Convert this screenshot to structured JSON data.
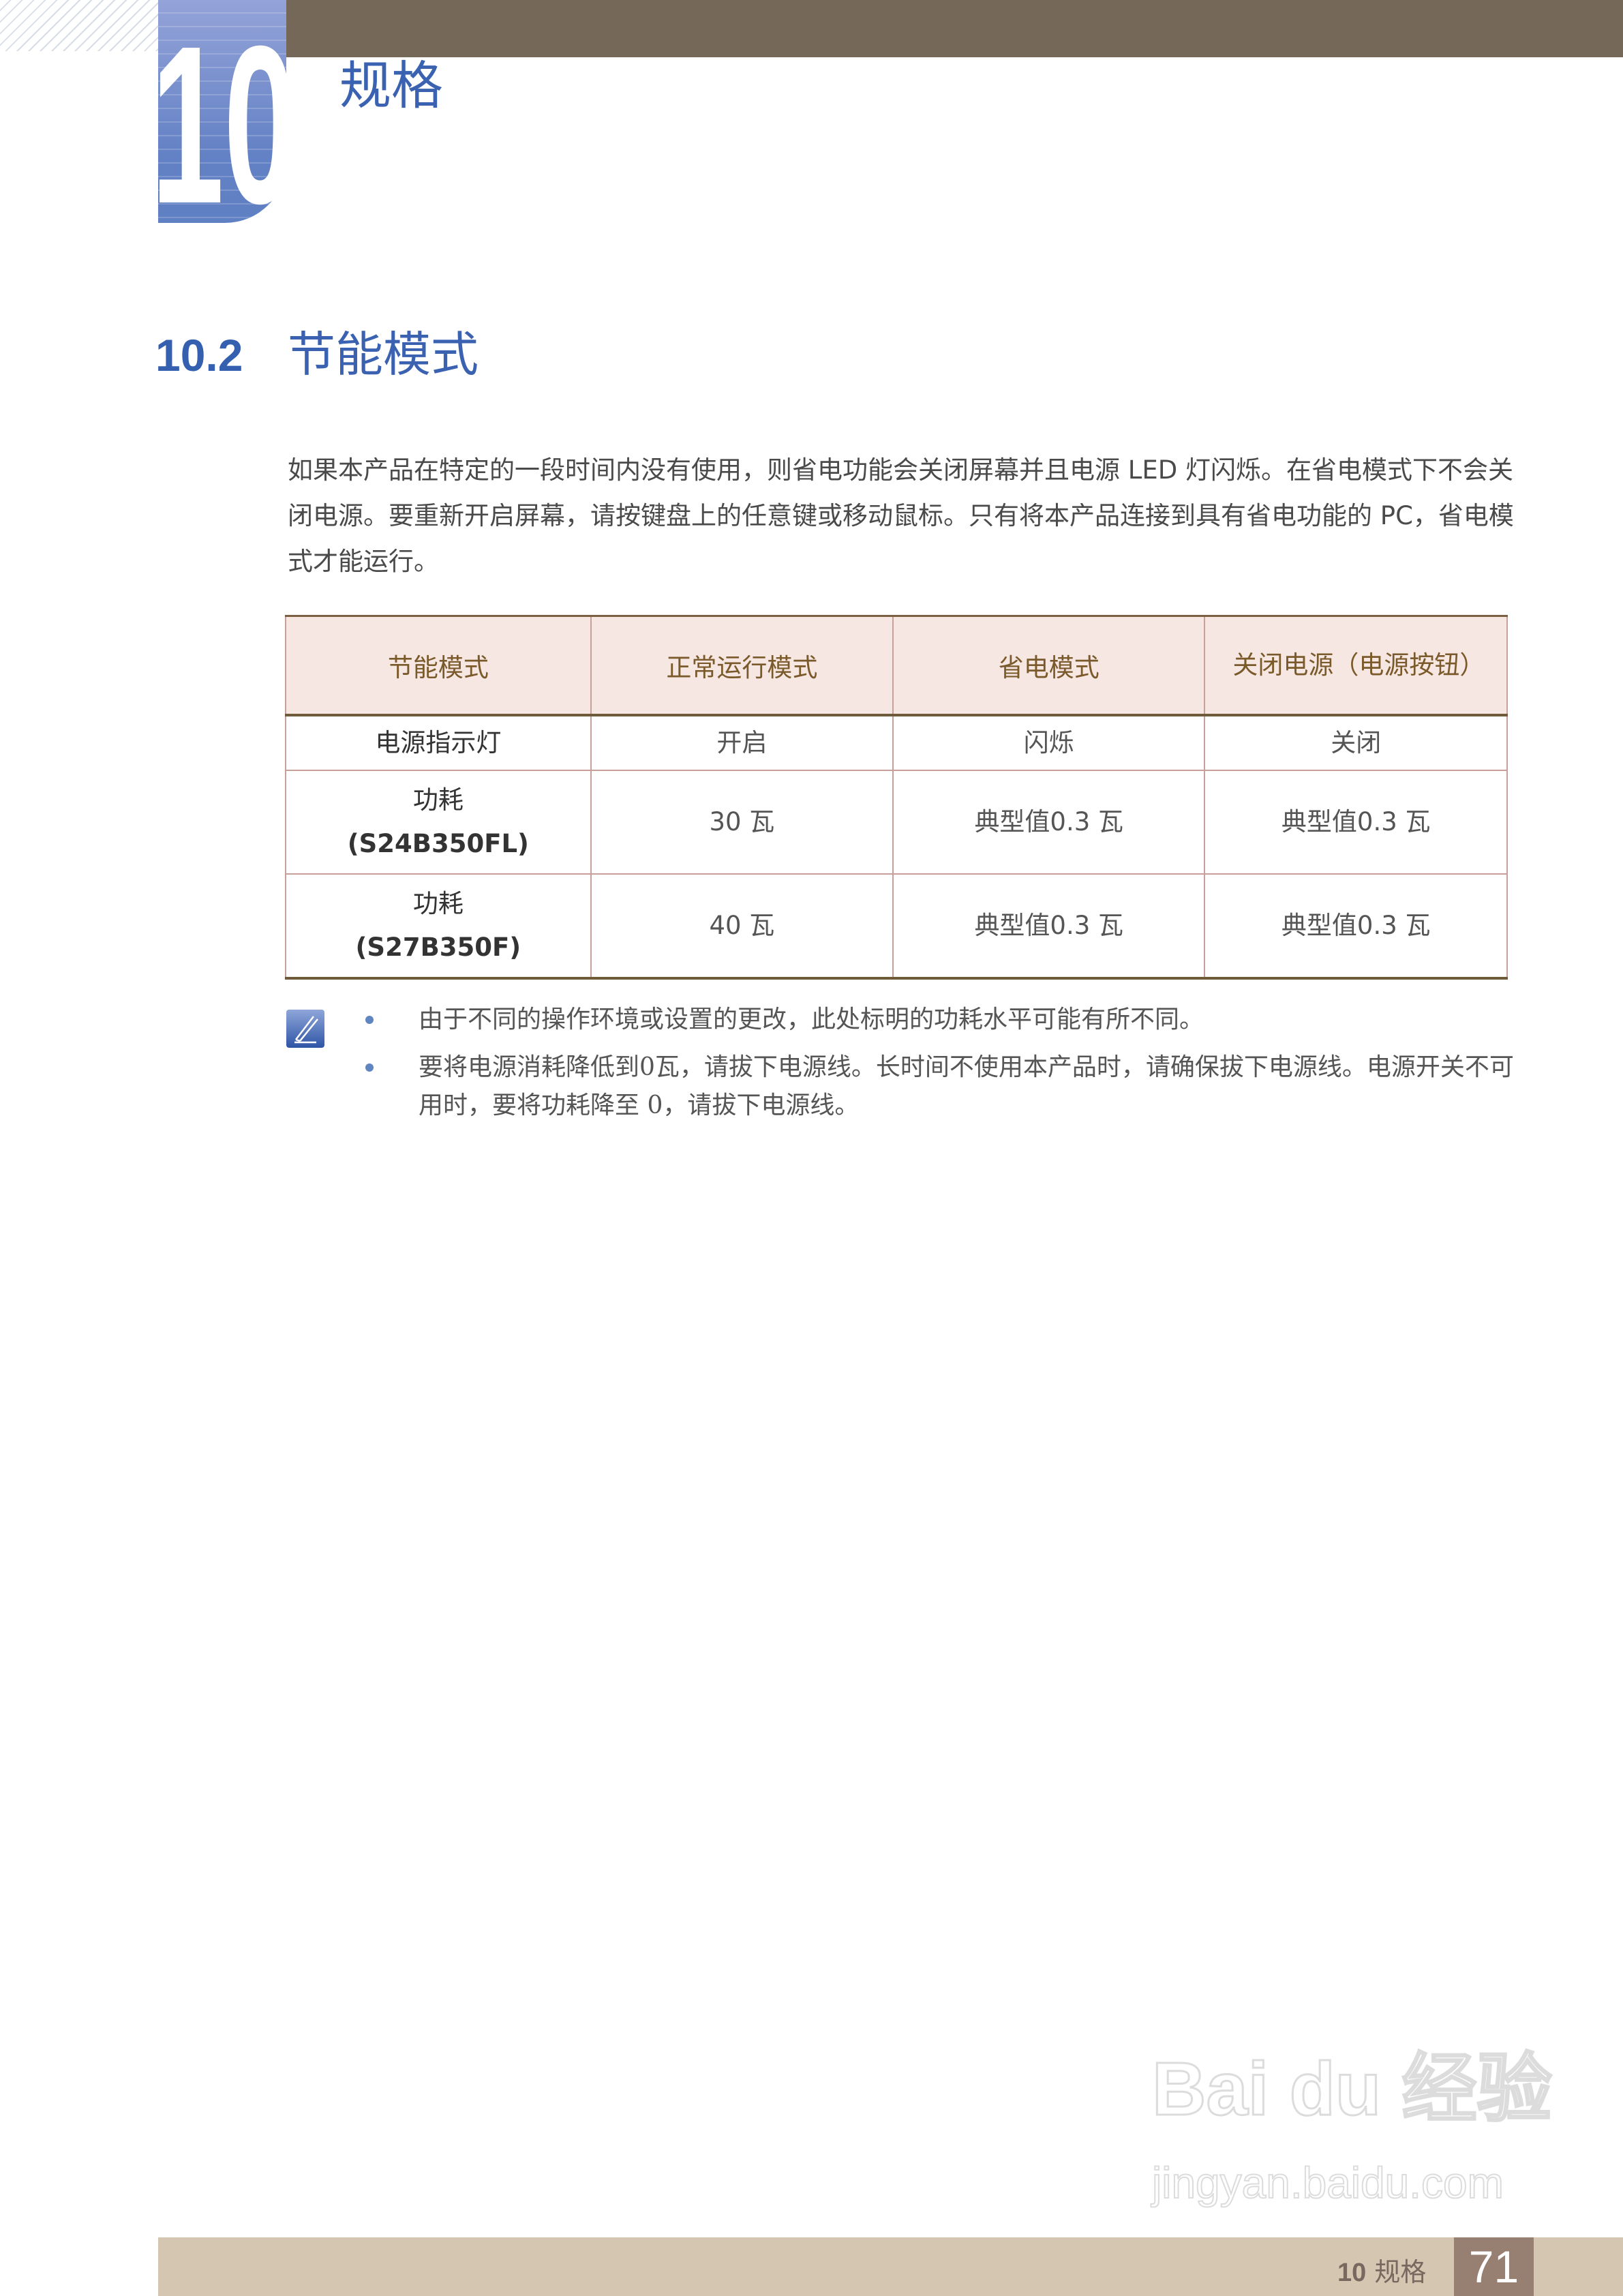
{
  "header": {
    "chapter_number": "10",
    "chapter_title": "规格"
  },
  "section": {
    "number": "10.2",
    "title": "节能模式"
  },
  "intro": "如果本产品在特定的一段时间内没有使用，则省电功能会关闭屏幕并且电源 LED 灯闪烁。在省电模式下不会关闭电源。要重新开启屏幕，请按键盘上的任意键或移动鼠标。只有将本产品连接到具有省电功能的 PC，省电模式才能运行。",
  "table": {
    "headers": [
      "节能模式",
      "正常运行模式",
      "省电模式",
      "关闭电源（电源按钮）"
    ],
    "rows": [
      {
        "label": "电源指示灯",
        "model": "",
        "cells": [
          "开启",
          "闪烁",
          "关闭"
        ]
      },
      {
        "label": "功耗",
        "model": "(S24B350FL)",
        "cells": [
          "30 瓦",
          "典型值0.3 瓦",
          "典型值0.3 瓦"
        ]
      },
      {
        "label": "功耗",
        "model": "(S27B350F)",
        "cells": [
          "40 瓦",
          "典型值0.3 瓦",
          "典型值0.3 瓦"
        ]
      }
    ]
  },
  "notes": {
    "icon": "note-pencil-icon",
    "items": [
      "由于不同的操作环境或设置的更改，此处标明的功耗水平可能有所不同。",
      "要将电源消耗降低到0瓦，请拔下电源线。长时间不使用本产品时，请确保拔下电源线。电源开关不可用时，要将功耗降至 0，请拔下电源线。"
    ]
  },
  "watermark": {
    "logo": "Bai du 经验",
    "url": "jingyan.baidu.com"
  },
  "footer": {
    "chapter_number": "10",
    "chapter_title": "规格",
    "page_number": "71"
  },
  "colors": {
    "accent_blue": "#3a62b0",
    "top_bar": "#756858",
    "footer_band": "#d5c6b1",
    "page_box": "#978071",
    "table_header_bg": "#f7e7e2"
  }
}
